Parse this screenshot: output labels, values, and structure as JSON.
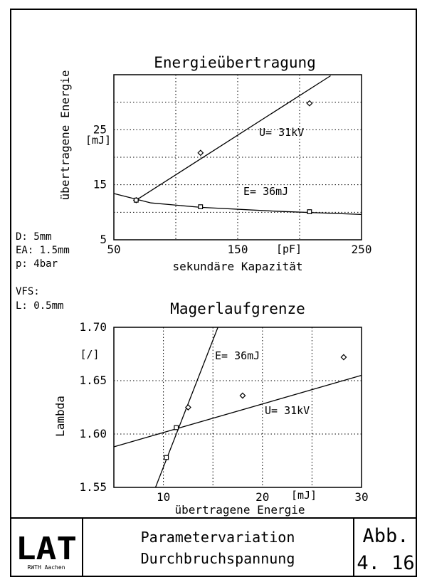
{
  "params": {
    "d": "D: 5mm",
    "ea": "EA: 1.5mm",
    "p": "p: 4bar",
    "vfs": "VFS:",
    "l": "L: 0.5mm"
  },
  "footer": {
    "logo_text": "LAT",
    "logo_sub": "RWTH Aachen",
    "title_line1": "Parametervariation",
    "title_line2": "Durchbruchspannung",
    "fig_label": "Abb.",
    "fig_number": "4. 16"
  },
  "chart_data": [
    {
      "type": "line",
      "title": "Energieübertragung",
      "xlabel": "sekundäre Kapazität",
      "ylabel": "übertragene Energie",
      "x_unit": "[pF]",
      "y_unit": "[mJ]",
      "xlim": [
        50,
        250
      ],
      "ylim": [
        5,
        35
      ],
      "x_ticks": [
        50,
        150,
        250
      ],
      "y_ticks": [
        5,
        15,
        25
      ],
      "grid": true,
      "series": [
        {
          "name": "U= 31kV",
          "points": [
            [
              68,
              12.2
            ],
            [
              120,
              20.8
            ],
            [
              208,
              29.8
            ]
          ],
          "fit": [
            [
              68,
              12.2
            ],
            [
              225,
              34.8
            ]
          ]
        },
        {
          "name": "E= 36mJ",
          "points": [
            [
              68,
              12.2
            ],
            [
              120,
              11.0
            ],
            [
              208,
              10.1
            ]
          ],
          "fit": [
            [
              50,
              13.4
            ],
            [
              80,
              11.7
            ],
            [
              120,
              10.9
            ],
            [
              180,
              10.2
            ],
            [
              250,
              9.6
            ]
          ]
        }
      ],
      "series_labels": [
        "U= 31kV",
        "E= 36mJ"
      ]
    },
    {
      "type": "scatter",
      "title": "Magerlaufgrenze",
      "xlabel": "übertragene Energie",
      "ylabel": "Lambda",
      "x_unit": "[mJ]",
      "y_unit": "[/]",
      "xlim": [
        5,
        30
      ],
      "ylim": [
        1.55,
        1.7
      ],
      "x_ticks": [
        10,
        20,
        30
      ],
      "y_ticks": [
        1.55,
        1.6,
        1.65,
        1.7
      ],
      "grid": true,
      "series": [
        {
          "name": "E= 36mJ",
          "points": [
            [
              10.3,
              1.578
            ],
            [
              11.3,
              1.606
            ]
          ],
          "fit": [
            [
              9.2,
              1.55
            ],
            [
              15.5,
              1.7
            ]
          ]
        },
        {
          "name": "U= 31kV",
          "points": [
            [
              12.5,
              1.625
            ],
            [
              18.0,
              1.636
            ],
            [
              28.2,
              1.672
            ]
          ],
          "fit": [
            [
              5,
              1.588
            ],
            [
              30,
              1.655
            ]
          ]
        }
      ],
      "series_labels": [
        "E= 36mJ",
        "U= 31kV"
      ]
    }
  ]
}
